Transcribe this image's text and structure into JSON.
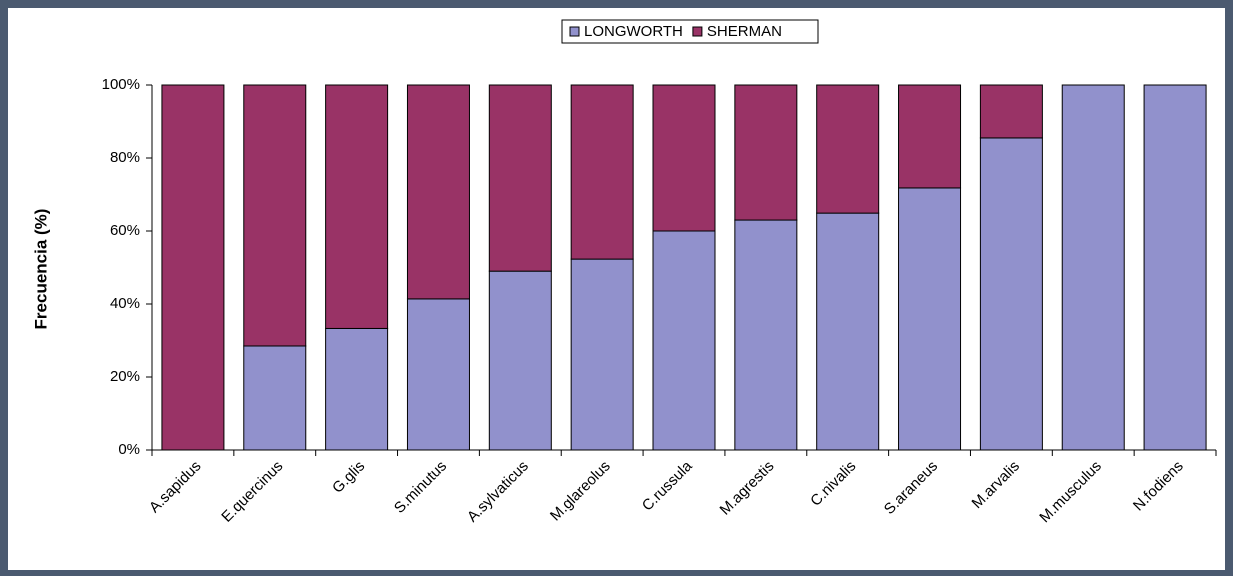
{
  "chart_data": {
    "type": "stacked_bar_100",
    "categories": [
      "A.sapidus",
      "E.quercinus",
      "G.glis",
      "S.minutus",
      "A.sylvaticus",
      "M.glareolus",
      "C.russula",
      "M.agrestis",
      "C.nivalis",
      "S.araneus",
      "M.arvalis",
      "M.musculus",
      "N.fodiens"
    ],
    "series": [
      {
        "name": "LONGWORTH",
        "color": "#9191cc",
        "values": [
          0,
          28.5,
          33.3,
          41.4,
          49,
          52.3,
          60,
          63,
          64.9,
          71.8,
          85.5,
          100,
          100
        ]
      },
      {
        "name": "SHERMAN",
        "color": "#993366",
        "values": [
          100,
          71.5,
          66.7,
          58.6,
          51,
          47.7,
          40,
          37,
          35.1,
          28.2,
          14.5,
          0,
          0
        ]
      }
    ],
    "ylabel": "Frecuencia (%)",
    "ylim": [
      0,
      100
    ],
    "yticks": [
      {
        "value": 0,
        "label": "0%"
      },
      {
        "value": 20,
        "label": "20%"
      },
      {
        "value": 40,
        "label": "40%"
      },
      {
        "value": 60,
        "label": "60%"
      },
      {
        "value": 80,
        "label": "80%"
      },
      {
        "value": 100,
        "label": "100%"
      }
    ],
    "legend": "top"
  }
}
